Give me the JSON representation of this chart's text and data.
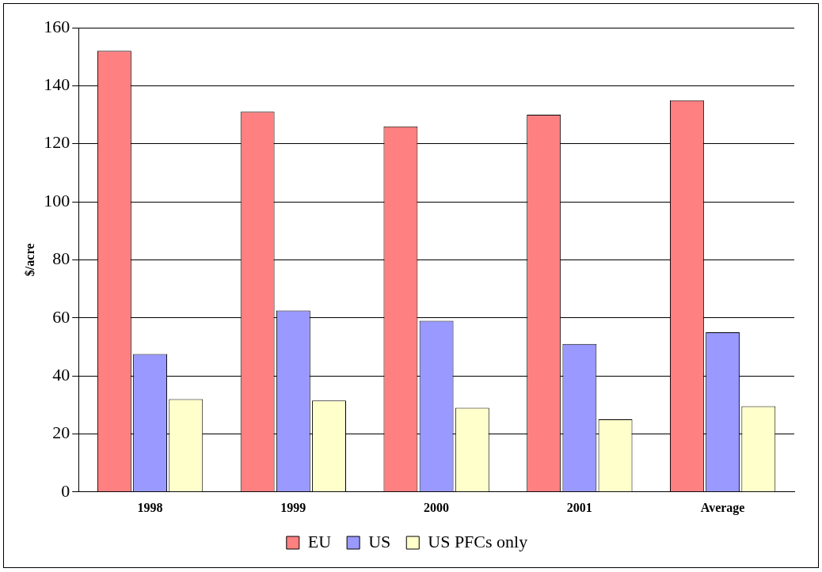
{
  "chart_data": {
    "type": "bar",
    "ylabel": "$/acre",
    "categories": [
      "1998",
      "1999",
      "2000",
      "2001",
      "Average"
    ],
    "series": [
      {
        "name": "EU",
        "color": "#ff8080",
        "values": [
          152,
          131,
          126,
          130,
          135
        ]
      },
      {
        "name": "US",
        "color": "#9999ff",
        "values": [
          47.5,
          62.5,
          59,
          51,
          55
        ]
      },
      {
        "name": "US PFCs only",
        "color": "#ffffcc",
        "values": [
          32,
          31.5,
          29,
          25,
          29.5
        ]
      }
    ],
    "ylim": [
      0,
      160
    ],
    "yticks": [
      0,
      20,
      40,
      60,
      80,
      100,
      120,
      140,
      160
    ],
    "grid": "y",
    "legend": "bottom"
  }
}
